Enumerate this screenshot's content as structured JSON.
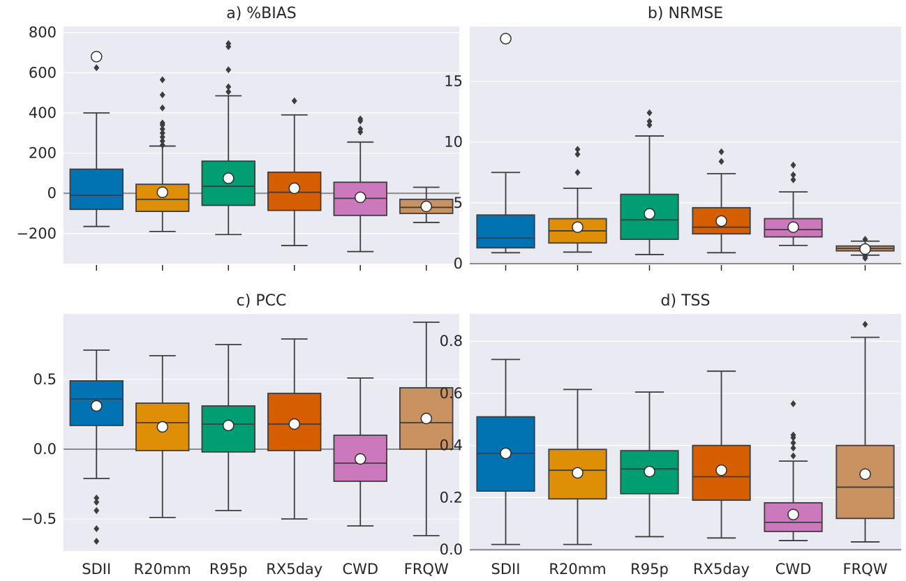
{
  "chart_data": [
    {
      "type": "box",
      "title": "a) %BIAS",
      "categories": [
        "SDII",
        "R20mm",
        "R95p",
        "RX5day",
        "CWD",
        "FRQW"
      ],
      "show_category_labels": false,
      "ylim": [
        -350,
        830
      ],
      "yticks": [
        -200,
        0,
        200,
        400,
        600,
        800
      ],
      "yticklabels": [
        "−200",
        "0",
        "200",
        "400",
        "600",
        "800"
      ],
      "reference_line": 0,
      "boxes": [
        {
          "whislo": -165,
          "q1": -80,
          "med": -10,
          "q3": 120,
          "whishi": 400,
          "mean": 680,
          "fliers": [
            625
          ]
        },
        {
          "whislo": -190,
          "q1": -90,
          "med": -30,
          "q3": 45,
          "whishi": 235,
          "mean": 5,
          "fliers": [
            240,
            260,
            280,
            300,
            320,
            340,
            350,
            425,
            490,
            565
          ]
        },
        {
          "whislo": -205,
          "q1": -60,
          "med": 35,
          "q3": 160,
          "whishi": 485,
          "mean": 75,
          "fliers": [
            505,
            530,
            615,
            730,
            745
          ]
        },
        {
          "whislo": -260,
          "q1": -85,
          "med": 5,
          "q3": 105,
          "whishi": 390,
          "mean": 25,
          "fliers": [
            460
          ]
        },
        {
          "whislo": -290,
          "q1": -110,
          "med": -25,
          "q3": 55,
          "whishi": 255,
          "mean": -20,
          "fliers": [
            305,
            320,
            360,
            370
          ]
        },
        {
          "whislo": -145,
          "q1": -100,
          "med": -70,
          "q3": -30,
          "whishi": 30,
          "mean": -65,
          "fliers": []
        }
      ]
    },
    {
      "type": "box",
      "title": "b) NRMSE",
      "categories": [
        "SDII",
        "R20mm",
        "R95p",
        "RX5day",
        "CWD",
        "FRQW"
      ],
      "show_category_labels": false,
      "ylim": [
        0,
        19.5
      ],
      "yticks": [
        0,
        5,
        10,
        15
      ],
      "yticklabels": [
        "0",
        "5",
        "10",
        "15"
      ],
      "reference_line": 0,
      "boxes": [
        {
          "whislo": 0.9,
          "q1": 1.3,
          "med": 2.1,
          "q3": 4.0,
          "whishi": 7.5,
          "mean": 18.5,
          "fliers": []
        },
        {
          "whislo": 0.95,
          "q1": 1.7,
          "med": 2.7,
          "q3": 3.7,
          "whishi": 6.2,
          "mean": 3.0,
          "fliers": [
            7.5,
            9.0,
            9.4
          ]
        },
        {
          "whislo": 0.75,
          "q1": 2.0,
          "med": 3.6,
          "q3": 5.7,
          "whishi": 10.5,
          "mean": 4.1,
          "fliers": [
            11.4,
            11.7,
            12.4
          ]
        },
        {
          "whislo": 0.9,
          "q1": 2.45,
          "med": 3.0,
          "q3": 4.6,
          "whishi": 7.4,
          "mean": 3.5,
          "fliers": [
            8.4,
            9.2
          ]
        },
        {
          "whislo": 1.5,
          "q1": 2.2,
          "med": 2.8,
          "q3": 3.7,
          "whishi": 5.9,
          "mean": 3.0,
          "fliers": [
            6.9,
            7.3,
            8.1
          ]
        },
        {
          "whislo": 0.7,
          "q1": 1.05,
          "med": 1.25,
          "q3": 1.45,
          "whishi": 1.85,
          "mean": 1.2,
          "fliers": [
            0.45,
            0.6,
            2.0
          ]
        }
      ]
    },
    {
      "type": "box",
      "title": "c) PCC",
      "categories": [
        "SDII",
        "R20mm",
        "R95p",
        "RX5day",
        "CWD",
        "FRQW"
      ],
      "show_category_labels": true,
      "ylim": [
        -0.73,
        0.97
      ],
      "yticks": [
        -0.5,
        0.0,
        0.5
      ],
      "yticklabels": [
        "−0.5",
        "0.0",
        "0.5"
      ],
      "reference_line": 0,
      "boxes": [
        {
          "whislo": -0.21,
          "q1": 0.17,
          "med": 0.36,
          "q3": 0.49,
          "whishi": 0.71,
          "mean": 0.31,
          "fliers": [
            -0.35,
            -0.38,
            -0.44,
            -0.57,
            -0.66
          ]
        },
        {
          "whislo": -0.49,
          "q1": -0.01,
          "med": 0.19,
          "q3": 0.33,
          "whishi": 0.67,
          "mean": 0.16,
          "fliers": []
        },
        {
          "whislo": -0.44,
          "q1": -0.02,
          "med": 0.18,
          "q3": 0.31,
          "whishi": 0.75,
          "mean": 0.17,
          "fliers": []
        },
        {
          "whislo": -0.5,
          "q1": -0.01,
          "med": 0.18,
          "q3": 0.4,
          "whishi": 0.79,
          "mean": 0.18,
          "fliers": []
        },
        {
          "whislo": -0.55,
          "q1": -0.23,
          "med": -0.1,
          "q3": 0.1,
          "whishi": 0.51,
          "mean": -0.07,
          "fliers": []
        },
        {
          "whislo": -0.62,
          "q1": 0.0,
          "med": 0.19,
          "q3": 0.44,
          "whishi": 0.91,
          "mean": 0.22,
          "fliers": []
        }
      ]
    },
    {
      "type": "box",
      "title": "d) TSS",
      "categories": [
        "SDII",
        "R20mm",
        "R95p",
        "RX5day",
        "CWD",
        "FRQW"
      ],
      "show_category_labels": true,
      "ylim": [
        -0.005,
        0.905
      ],
      "yticks": [
        0.0,
        0.2,
        0.4,
        0.6,
        0.8
      ],
      "yticklabels": [
        "0.0",
        "0.2",
        "0.4",
        "0.6",
        "0.8"
      ],
      "reference_line": 0,
      "boxes": [
        {
          "whislo": 0.02,
          "q1": 0.225,
          "med": 0.37,
          "q3": 0.51,
          "whishi": 0.73,
          "mean": 0.37,
          "fliers": []
        },
        {
          "whislo": 0.02,
          "q1": 0.195,
          "med": 0.305,
          "q3": 0.385,
          "whishi": 0.615,
          "mean": 0.295,
          "fliers": []
        },
        {
          "whislo": 0.05,
          "q1": 0.215,
          "med": 0.31,
          "q3": 0.38,
          "whishi": 0.605,
          "mean": 0.3,
          "fliers": []
        },
        {
          "whislo": 0.045,
          "q1": 0.19,
          "med": 0.28,
          "q3": 0.4,
          "whishi": 0.685,
          "mean": 0.305,
          "fliers": []
        },
        {
          "whislo": 0.035,
          "q1": 0.07,
          "med": 0.105,
          "q3": 0.18,
          "whishi": 0.34,
          "mean": 0.135,
          "fliers": [
            0.36,
            0.39,
            0.41,
            0.43,
            0.44,
            0.56
          ]
        },
        {
          "whislo": 0.03,
          "q1": 0.12,
          "med": 0.24,
          "q3": 0.4,
          "whishi": 0.815,
          "mean": 0.29,
          "fliers": [
            0.865
          ]
        }
      ]
    }
  ],
  "colors": {
    "panel_background": "#EAEAF2",
    "gridline": "#FFFFFF",
    "reference_line": "#8C8C8C",
    "edge": "#3D3D3D",
    "SDII": "#0173B2",
    "R20mm": "#DE8F05",
    "R95p": "#029E73",
    "RX5day": "#D55E00",
    "CWD": "#CC78BC",
    "FRQW": "#CA9161"
  }
}
